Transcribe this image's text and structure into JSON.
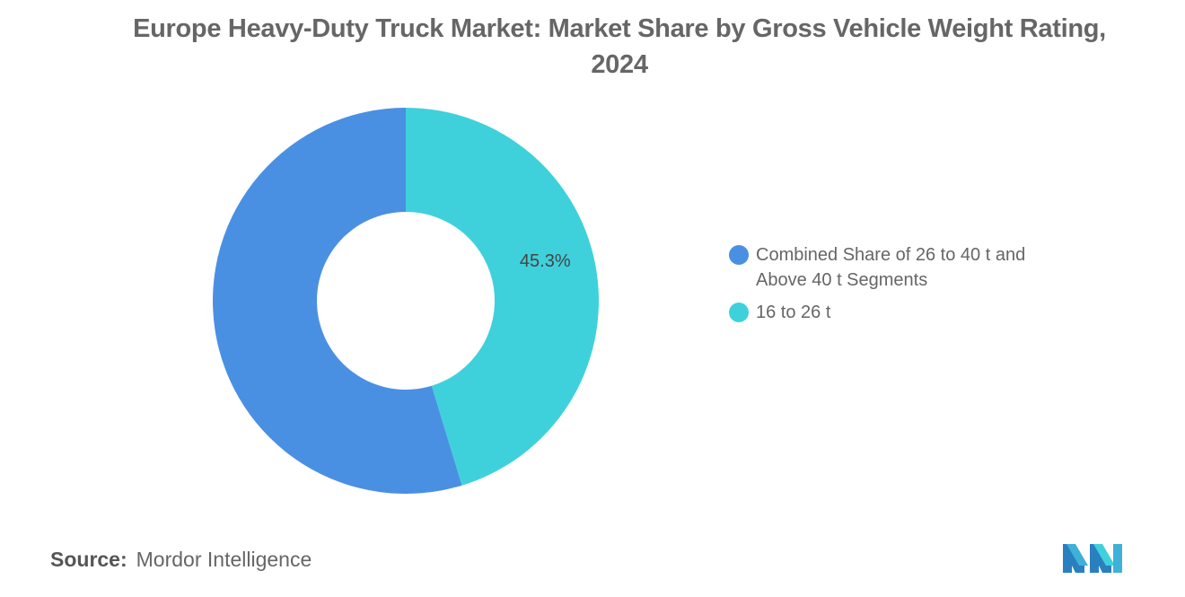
{
  "chart_data": {
    "type": "pie",
    "title": "Europe Heavy-Duty Truck Market: Market Share by Gross Vehicle Weight Rating, 2024",
    "donut": true,
    "series": [
      {
        "name": "Combined Share of 26 to 40 t and Above 40 t Segments",
        "value": 54.7,
        "label": "",
        "color": "#4a90e2"
      },
      {
        "name": "16 to 26 t",
        "value": 45.3,
        "label": "45.3%",
        "color": "#3fd1db"
      }
    ],
    "legend_position": "right"
  },
  "source": {
    "label": "Source:",
    "text": "Mordor Intelligence"
  },
  "logo": {
    "icon": "mordor-intelligence-logo",
    "colors": [
      "#3fb0d8",
      "#2a7fbf",
      "#3fd1db"
    ]
  }
}
